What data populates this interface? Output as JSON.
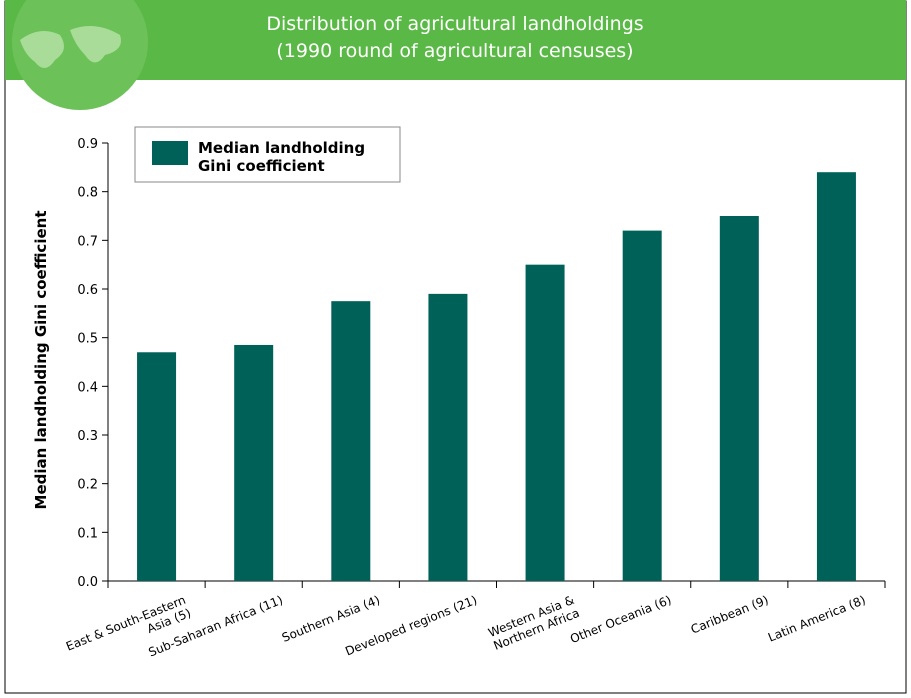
{
  "chart_data": {
    "type": "bar",
    "title": "Distribution of agricultural landholdings",
    "subtitle": "(1990 round of agricultural censuses)",
    "y_label": "Median landholding Gini coefficient",
    "categories": [
      "East & South-Eastern\nAsia (5)",
      "Sub-Saharan Africa (11)",
      "Southern Asia (4)",
      "Developed regions (21)",
      "Western Asia &\nNorthern Africa",
      "Other Oceania (6)",
      "Caribbean (9)",
      "Latin America (8)"
    ],
    "series": [
      {
        "name": "Median landholding\nGini coefficient",
        "color": "#006159",
        "values": [
          0.47,
          0.485,
          0.575,
          0.59,
          0.65,
          0.72,
          0.75,
          0.84
        ]
      }
    ],
    "ylim": [
      0,
      0.9
    ],
    "yticks": [
      {
        "value": 0,
        "label": "0.0"
      },
      0.1,
      0.2,
      0.3,
      0.4,
      0.5,
      0.6,
      0.7,
      0.8,
      0.9
    ],
    "legend": "top-left"
  }
}
